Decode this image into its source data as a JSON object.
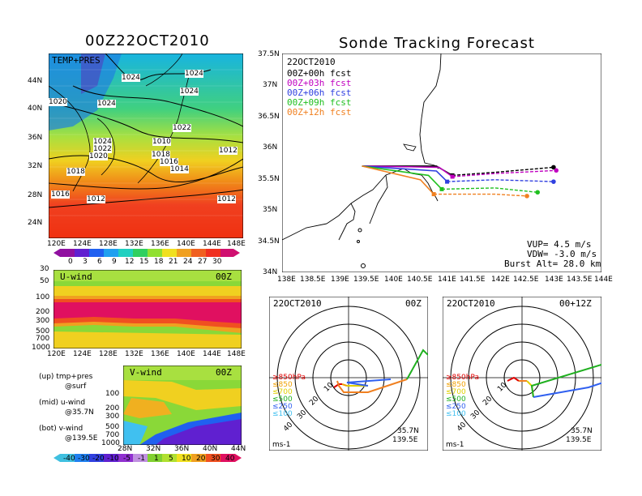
{
  "left": {
    "title": "00Z22OCT2010",
    "map": {
      "tag": "TEMP+PRES",
      "lat_labels": [
        "44N",
        "40N",
        "36N",
        "32N",
        "28N",
        "24N"
      ],
      "lon_labels": [
        "120E",
        "124E",
        "128E",
        "132E",
        "136E",
        "140E",
        "144E",
        "148E"
      ],
      "isobars": [
        "1024",
        "1024",
        "1020",
        "1024",
        "1024",
        "1022",
        "1024",
        "1022",
        "1020",
        "1018",
        "1016",
        "1014",
        "1012",
        "1010",
        "1018",
        "1016",
        "1012",
        "1012"
      ],
      "colorbar_ticks": [
        "0",
        "3",
        "6",
        "9",
        "12",
        "15",
        "18",
        "21",
        "24",
        "27",
        "30"
      ]
    },
    "uwind": {
      "title": "U-wind",
      "time": "00Z",
      "p_labels": [
        "30",
        "50",
        "100",
        "200",
        "300",
        "500",
        "700",
        "1000"
      ],
      "lon_labels": [
        "120E",
        "124E",
        "128E",
        "132E",
        "136E",
        "140E",
        "144E",
        "148E"
      ]
    },
    "legend": {
      "up1": "(up) tmp+pres",
      "up2": "@surf",
      "mid1": "(mid) u-wind",
      "mid2": "@35.7N",
      "bot1": "(bot) v-wind",
      "bot2": "@139.5E"
    },
    "vwind": {
      "title": "V-wind",
      "time": "00Z",
      "p_labels": [
        "100",
        "200",
        "300",
        "500",
        "700",
        "1000"
      ],
      "lat_labels": [
        "28N",
        "32N",
        "36N",
        "40N",
        "44N"
      ]
    },
    "colorbar2_ticks": [
      "-40",
      "-30",
      "-20",
      "-10",
      "-5",
      "-1",
      "1",
      "5",
      "10",
      "20",
      "30",
      "40"
    ]
  },
  "right": {
    "title": "Sonde Tracking Forecast",
    "date": "22OCT2010",
    "fcst": [
      "00Z+00h fcst",
      "00Z+03h fcst",
      "00Z+06h fcst",
      "00Z+09h fcst",
      "00Z+12h fcst"
    ],
    "fcst_colors": [
      "#000000",
      "#c000c0",
      "#3040e0",
      "#20c020",
      "#f08020"
    ],
    "lat_labels": [
      "37.5N",
      "37N",
      "36.5N",
      "36N",
      "35.5N",
      "35N",
      "34.5N",
      "34N"
    ],
    "lon_labels": [
      "138E",
      "138.5E",
      "139E",
      "139.5E",
      "140E",
      "140.5E",
      "141E",
      "141.5E",
      "142E",
      "142.5E",
      "143E",
      "143.5E",
      "144E"
    ],
    "params": {
      "vup": "VUP= 4.5 m/s",
      "vdw": "VDW= -3.0 m/s",
      "burst": "Burst Alt= 28.0 km"
    },
    "hodo1": {
      "date": "22OCT2010",
      "time": "00Z",
      "lat": "35.7N",
      "lon": "139.5E",
      "unit": "ms-1",
      "rings": [
        "10",
        "20",
        "30",
        "40"
      ]
    },
    "hodo2": {
      "date": "22OCT2010",
      "time": "00+12Z",
      "lat": "35.7N",
      "lon": "139.5E",
      "unit": "ms-1",
      "rings": [
        "10",
        "20",
        "30",
        "40"
      ]
    },
    "hodo_levels": [
      "≥850hPa",
      "≤850",
      "≤700",
      "≤500",
      "≤250",
      "≤100"
    ],
    "hodo_colors": [
      "#e00000",
      "#f0a000",
      "#e0d000",
      "#20b020",
      "#3060f0",
      "#40c0f0"
    ]
  },
  "chart_data": [
    {
      "type": "line",
      "title": "Sonde Tracking Forecast",
      "series": [
        {
          "name": "00Z+00h fcst",
          "x": [
            139.5,
            140.9,
            141.2,
            142.0,
            143.1
          ],
          "y": [
            35.7,
            35.7,
            35.55,
            35.6,
            35.68
          ]
        },
        {
          "name": "00Z+03h fcst",
          "x": [
            139.5,
            140.95,
            141.2,
            142.0,
            143.15
          ],
          "y": [
            35.7,
            35.68,
            35.53,
            35.58,
            35.63
          ]
        },
        {
          "name": "00Z+06h fcst",
          "x": [
            139.5,
            140.9,
            141.1,
            142.0,
            143.1
          ],
          "y": [
            35.7,
            35.62,
            35.45,
            35.48,
            35.45
          ]
        },
        {
          "name": "00Z+09h fcst",
          "x": [
            139.5,
            140.75,
            141.0,
            142.0,
            142.8
          ],
          "y": [
            35.7,
            35.55,
            35.33,
            35.35,
            35.28
          ]
        },
        {
          "name": "00Z+12h fcst",
          "x": [
            139.5,
            140.6,
            140.85,
            142.0,
            142.6
          ],
          "y": [
            35.7,
            35.48,
            35.25,
            35.25,
            35.22
          ]
        }
      ],
      "xlim": [
        138,
        144
      ],
      "ylim": [
        34,
        37.5
      ]
    }
  ]
}
